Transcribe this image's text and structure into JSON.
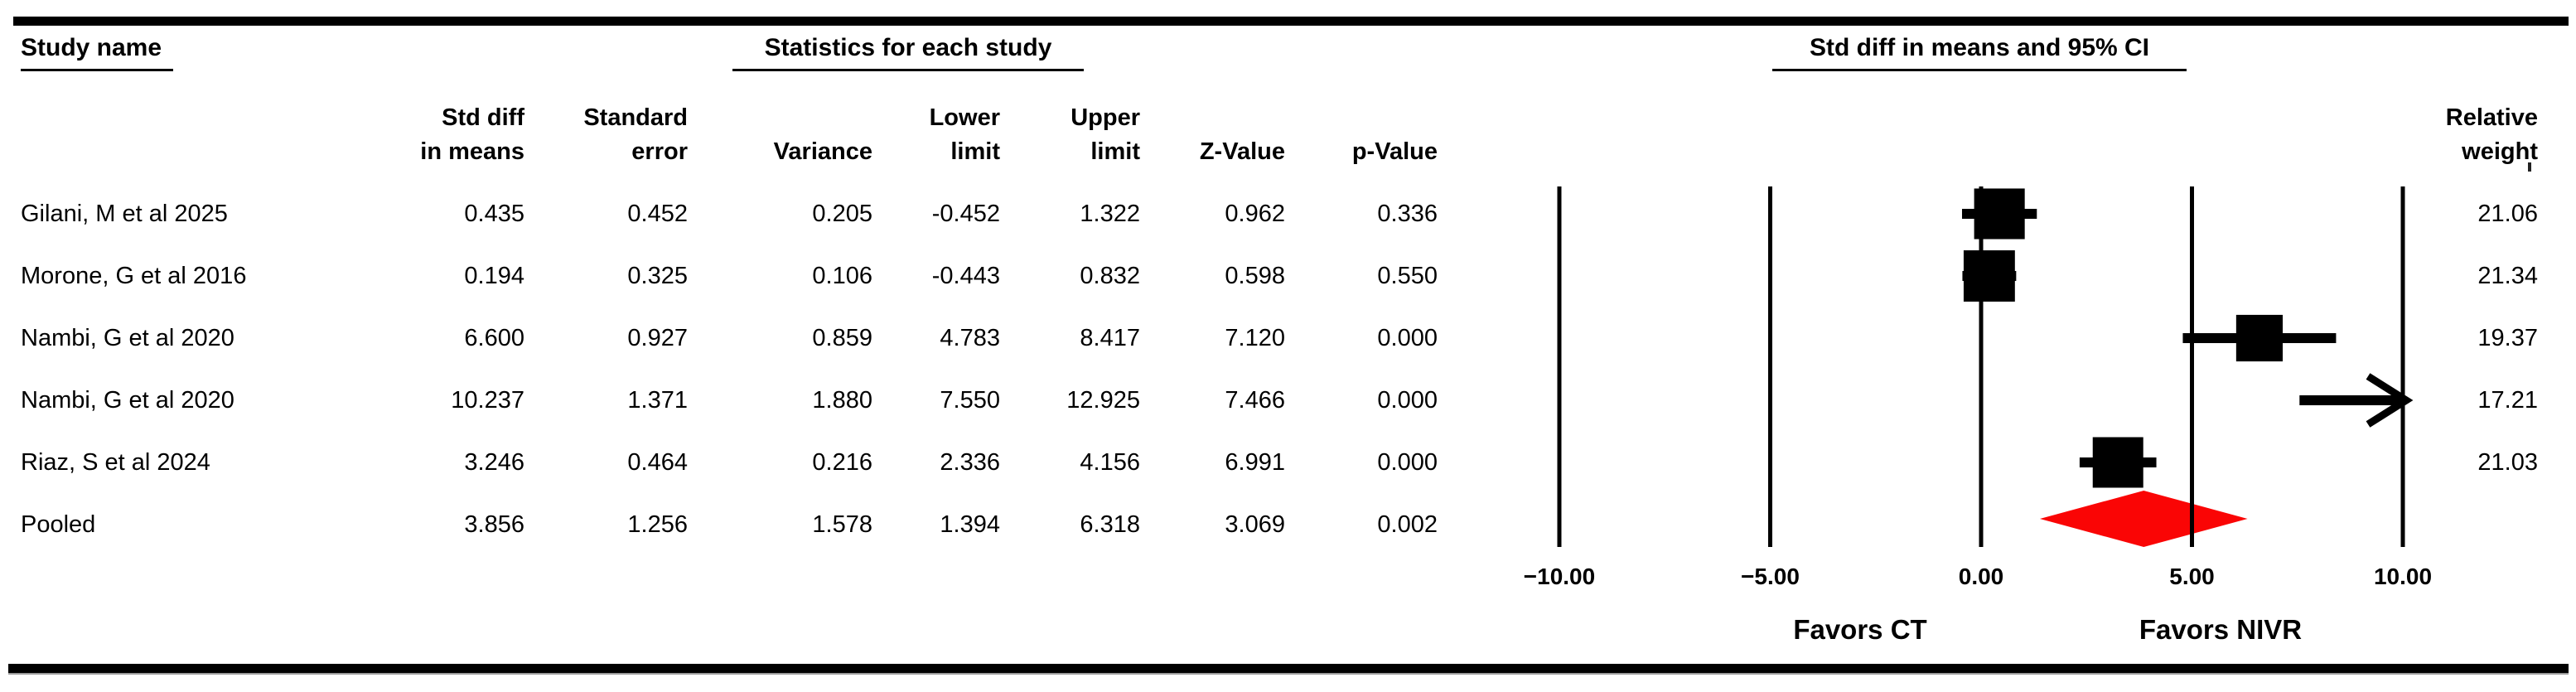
{
  "table": {
    "study_title": "Study name",
    "stats_title": "Statistics for each study",
    "ci_title": "Std diff in means and 95% CI",
    "columns": {
      "std_diff": [
        "Std diff",
        "in means"
      ],
      "standard_error": [
        "Standard",
        "error"
      ],
      "variance": "Variance",
      "lower": [
        "Lower",
        "limit"
      ],
      "upper": [
        "Upper",
        "limit"
      ],
      "z_value": "Z-Value",
      "p_value": "p-Value",
      "weight": [
        "Relative",
        "weight"
      ]
    },
    "rows": [
      {
        "name": "Gilani, M et al 2025",
        "cells": [
          "0.435",
          "0.452",
          "0.205",
          "-0.452",
          "1.322",
          "0.962",
          "0.336"
        ],
        "weight": "21.06"
      },
      {
        "name": "Morone, G et al 2016",
        "cells": [
          "0.194",
          "0.325",
          "0.106",
          "-0.443",
          "0.832",
          "0.598",
          "0.550"
        ],
        "weight": "21.34"
      },
      {
        "name": "Nambi, G et al 2020",
        "cells": [
          "6.600",
          "0.927",
          "0.859",
          "4.783",
          "8.417",
          "7.120",
          "0.000"
        ],
        "weight": "19.37"
      },
      {
        "name": "Nambi, G et al 2020",
        "cells": [
          "10.237",
          "1.371",
          "1.880",
          "7.550",
          "12.925",
          "7.466",
          "0.000"
        ],
        "weight": "17.21"
      },
      {
        "name": "Riaz, S et al 2024",
        "cells": [
          "3.246",
          "0.464",
          "0.216",
          "2.336",
          "4.156",
          "6.991",
          "0.000"
        ],
        "weight": "21.03"
      },
      {
        "name": "Pooled",
        "cells": [
          "3.856",
          "1.256",
          "1.578",
          "1.394",
          "6.318",
          "3.069",
          "0.002"
        ],
        "weight": ""
      }
    ]
  },
  "chart_data": {
    "type": "forest",
    "effect_measure": "Std diff in means",
    "axis": {
      "min": -10,
      "max": 10,
      "tick_values": [
        -10,
        -5,
        0,
        5,
        10
      ],
      "tick_labels": [
        "−10.00",
        "−5.00",
        "0.00",
        "5.00",
        "10.00"
      ]
    },
    "favors_left": "Favors CT",
    "favors_right": "Favors NIVR",
    "studies": [
      {
        "name": "Gilani, M et al 2025",
        "std_diff": 0.435,
        "std_err": 0.452,
        "variance": 0.205,
        "lower": -0.452,
        "upper": 1.322,
        "z": 0.962,
        "p": 0.336,
        "rel_weight": 21.06
      },
      {
        "name": "Morone, G et al 2016",
        "std_diff": 0.194,
        "std_err": 0.325,
        "variance": 0.106,
        "lower": -0.443,
        "upper": 0.832,
        "z": 0.598,
        "p": 0.55,
        "rel_weight": 21.34
      },
      {
        "name": "Nambi, G et al 2020",
        "std_diff": 6.6,
        "std_err": 0.927,
        "variance": 0.859,
        "lower": 4.783,
        "upper": 8.417,
        "z": 7.12,
        "p": 0.0,
        "rel_weight": 19.37
      },
      {
        "name": "Nambi, G et al 2020",
        "std_diff": 10.237,
        "std_err": 1.371,
        "variance": 1.88,
        "lower": 7.55,
        "upper": 12.925,
        "z": 7.466,
        "p": 0.0,
        "rel_weight": 17.21
      },
      {
        "name": "Riaz, S et al 2024",
        "std_diff": 3.246,
        "std_err": 0.464,
        "variance": 0.216,
        "lower": 2.336,
        "upper": 4.156,
        "z": 6.991,
        "p": 0.0,
        "rel_weight": 21.03
      }
    ],
    "pooled": {
      "name": "Pooled",
      "std_diff": 3.856,
      "std_err": 1.256,
      "variance": 1.578,
      "lower": 1.394,
      "upper": 6.318,
      "z": 3.069,
      "p": 0.002
    },
    "colors": {
      "marker": "#000000",
      "diamond": "#fa0505",
      "gridline": "#000000"
    }
  }
}
